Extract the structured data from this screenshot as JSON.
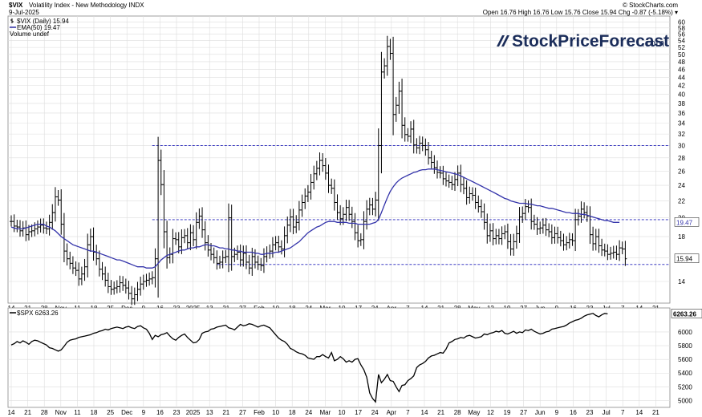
{
  "header": {
    "symbol": "$VIX",
    "description": "Volatility Index - New Methodology  INDX",
    "date": "9-Jul-2025",
    "ohlc": "Open 16.76  High 16.76  Low 15.76  Close 15.94  Chg -0.87 (-5.18%) ▾",
    "copyright": "© StockCharts.com",
    "logo_text": "StockPriceForecast",
    "logo_suffix": ".com"
  },
  "colors": {
    "price_bars": "#000000",
    "ema": "#3333aa",
    "support_lines": "#2222bb",
    "grid": "#dddddd",
    "logo": "#1b2d5a"
  },
  "chart_data": [
    {
      "type": "ohlc",
      "title": "$VIX (Daily) 15.94",
      "legend": [
        {
          "name": "$VIX (Daily) 15.94",
          "marker": "ohlc-icon"
        },
        {
          "name": "EMA(50) 19.47",
          "marker": "line"
        },
        {
          "name": "Volume undef",
          "marker": "none"
        }
      ],
      "y_scale": "log",
      "ylim": [
        12.4,
        62
      ],
      "y_ticks": [
        14,
        16,
        18,
        20,
        22,
        24,
        26,
        28,
        30,
        32,
        34,
        36,
        38,
        40,
        42,
        44,
        46,
        48,
        50,
        52,
        54,
        56,
        58,
        60
      ],
      "x_ticks": [
        "14",
        "21",
        "28",
        "Nov",
        "11",
        "18",
        "25",
        "Dec",
        "9",
        "16",
        "23",
        "2025",
        "13",
        "21",
        "27",
        "Feb",
        "10",
        "18",
        "24",
        "Mar",
        "10",
        "17",
        "24",
        "Apr",
        "7",
        "14",
        "21",
        "28",
        "May",
        "12",
        "19",
        "27",
        "Jun",
        "9",
        "16",
        "23",
        "Jul",
        "7",
        "14",
        "21"
      ],
      "last_value_badge": "15.94",
      "ema_badge": "19.47",
      "horizontal_lines": [
        {
          "value": 30.0,
          "from_index": 48
        },
        {
          "value": 19.8,
          "from_index": 48
        },
        {
          "value": 15.4,
          "from_index": 70
        }
      ],
      "series": [
        {
          "name": "$VIX",
          "type": "ohlc",
          "close": [
            19.6,
            19.1,
            19.0,
            18.6,
            18.9,
            18.2,
            18.5,
            18.6,
            18.8,
            19.0,
            19.2,
            18.9,
            18.8,
            19.5,
            20.6,
            22.5,
            22.1,
            19.3,
            16.6,
            15.9,
            15.5,
            15.1,
            14.9,
            14.2,
            14.6,
            15.2,
            17.2,
            18.0,
            16.5,
            15.9,
            15.0,
            14.6,
            14.1,
            13.6,
            13.4,
            13.5,
            13.6,
            13.9,
            13.7,
            13.5,
            13.1,
            12.7,
            13.0,
            13.4,
            13.8,
            14.0,
            14.1,
            14.2,
            14.3,
            15.9,
            27.6,
            24.1,
            18.5,
            16.0,
            16.3,
            17.8,
            17.7,
            17.0,
            17.9,
            18.1,
            17.4,
            18.4,
            17.7,
            19.5,
            20.2,
            18.7,
            17.4,
            16.7,
            16.3,
            16.0,
            15.5,
            15.6,
            16.0,
            16.1,
            20.0,
            16.1,
            16.3,
            16.5,
            15.8,
            16.4,
            15.6,
            15.1,
            16.1,
            15.6,
            15.4,
            15.3,
            16.1,
            16.4,
            16.6,
            17.2,
            17.4,
            17.0,
            16.8,
            18.1,
            19.2,
            20.1,
            19.0,
            19.5,
            20.9,
            21.8,
            22.6,
            23.1,
            24.4,
            25.6,
            26.4,
            27.6,
            26.8,
            25.7,
            24.0,
            23.6,
            21.8,
            20.6,
            19.9,
            20.4,
            21.2,
            20.4,
            19.6,
            18.4,
            17.6,
            17.7,
            19.6,
            21.0,
            21.5,
            21.0,
            22.1,
            30.0,
            45.3,
            46.9,
            52.3,
            50.3,
            35.7,
            37.6,
            40.7,
            33.6,
            31.9,
            31.6,
            32.9,
            30.1,
            29.6,
            30.4,
            30.0,
            29.3,
            28.0,
            27.3,
            26.5,
            25.8,
            25.7,
            24.9,
            24.6,
            24.4,
            24.1,
            24.8,
            25.7,
            24.1,
            23.6,
            22.4,
            22.9,
            22.7,
            21.8,
            21.3,
            20.7,
            19.5,
            18.1,
            18.6,
            17.8,
            18.1,
            17.8,
            18.3,
            18.5,
            17.5,
            16.8,
            17.5,
            18.3,
            20.1,
            20.5,
            21.3,
            21.2,
            19.6,
            19.3,
            18.8,
            18.9,
            19.2,
            18.7,
            18.5,
            17.9,
            18.3,
            17.9,
            17.6,
            17.2,
            17.4,
            17.7,
            17.6,
            19.8,
            20.2,
            21.0,
            20.6,
            20.2,
            18.2,
            17.3,
            18.0,
            17.1,
            16.7,
            16.6,
            16.3,
            16.4,
            16.5,
            16.3,
            16.9,
            16.8,
            15.9
          ]
        },
        {
          "name": "EMA(50) 19.47",
          "type": "line",
          "values": [
            19.0,
            18.9,
            18.8,
            18.8,
            18.8,
            18.9,
            19.0,
            19.1,
            19.2,
            19.3,
            19.3,
            19.3,
            19.1,
            19.0,
            18.8,
            18.6,
            18.3,
            18.0,
            17.8,
            17.6,
            17.4,
            17.2,
            17.1,
            17.0,
            16.9,
            16.8,
            16.7,
            16.6,
            16.6,
            16.5,
            16.4,
            16.3,
            16.2,
            16.1,
            16.0,
            15.9,
            15.8,
            15.8,
            15.7,
            15.6,
            15.5,
            15.4,
            15.3,
            15.2,
            15.2,
            15.2,
            15.1,
            15.1,
            15.1,
            15.2,
            15.5,
            15.8,
            16.0,
            16.2,
            16.3,
            16.4,
            16.5,
            16.6,
            16.7,
            16.7,
            16.8,
            16.9,
            16.9,
            17.0,
            17.0,
            17.1,
            17.2,
            17.2,
            17.1,
            17.1,
            17.0,
            16.9,
            16.9,
            16.8,
            16.8,
            16.7,
            16.7,
            16.6,
            16.6,
            16.5,
            16.5,
            16.5,
            16.5,
            16.4,
            16.4,
            16.3,
            16.3,
            16.4,
            16.4,
            16.4,
            16.5,
            16.5,
            16.6,
            16.7,
            16.8,
            16.9,
            17.1,
            17.3,
            17.5,
            17.8,
            18.1,
            18.4,
            18.6,
            18.8,
            19.0,
            19.1,
            19.3,
            19.5,
            19.6,
            19.6,
            19.6,
            19.5,
            19.5,
            19.5,
            19.5,
            19.4,
            19.4,
            19.4,
            19.3,
            19.3,
            19.3,
            19.3,
            19.3,
            19.4,
            19.5,
            19.8,
            20.6,
            21.5,
            22.4,
            23.2,
            23.8,
            24.3,
            24.7,
            25.0,
            25.2,
            25.4,
            25.6,
            25.8,
            25.9,
            26.1,
            26.2,
            26.2,
            26.3,
            26.3,
            26.3,
            26.2,
            26.1,
            26.0,
            25.9,
            25.8,
            25.7,
            25.6,
            25.5,
            25.3,
            25.1,
            24.9,
            24.7,
            24.5,
            24.3,
            24.1,
            23.9,
            23.7,
            23.5,
            23.3,
            23.1,
            22.9,
            22.7,
            22.5,
            22.3,
            22.2,
            22.0,
            21.9,
            21.8,
            21.7,
            21.7,
            21.7,
            21.6,
            21.6,
            21.5,
            21.4,
            21.4,
            21.3,
            21.2,
            21.1,
            21.1,
            21.0,
            20.9,
            20.8,
            20.7,
            20.6,
            20.6,
            20.5,
            20.5,
            20.5,
            20.4,
            20.4,
            20.3,
            20.2,
            20.1,
            20.0,
            19.9,
            19.8,
            19.7,
            19.7,
            19.6,
            19.5,
            19.5,
            19.5
          ]
        }
      ]
    },
    {
      "type": "line",
      "title": "$SPX 6263.26",
      "legend": [
        {
          "name": "$SPX 6263.26",
          "marker": "line"
        }
      ],
      "ylim": [
        4900,
        6350
      ],
      "y_ticks": [
        5000,
        5200,
        5400,
        5600,
        5800,
        6000
      ],
      "last_value_badge": "6263.26",
      "x_ticks": [
        "14",
        "21",
        "28",
        "Nov",
        "11",
        "18",
        "25",
        "Dec",
        "9",
        "16",
        "23",
        "2025",
        "13",
        "21",
        "27",
        "Feb",
        "10",
        "18",
        "24",
        "Mar",
        "10",
        "17",
        "24",
        "Apr",
        "7",
        "14",
        "21",
        "28",
        "May",
        "12",
        "19",
        "27",
        "Jun",
        "9",
        "16",
        "23",
        "Jul",
        "7",
        "14",
        "21"
      ],
      "series": [
        {
          "name": "$SPX",
          "values": [
            5810,
            5830,
            5860,
            5840,
            5870,
            5850,
            5820,
            5860,
            5880,
            5870,
            5850,
            5830,
            5810,
            5770,
            5760,
            5740,
            5720,
            5740,
            5790,
            5850,
            5880,
            5890,
            5900,
            5920,
            5930,
            5940,
            5950,
            5960,
            5980,
            5990,
            6010,
            6020,
            6040,
            6030,
            6050,
            6060,
            6070,
            6060,
            6050,
            6070,
            6080,
            6060,
            6050,
            6080,
            6090,
            6060,
            6040,
            5980,
            5890,
            5950,
            5930,
            5960,
            5970,
            5990,
            5940,
            5900,
            5880,
            5920,
            5950,
            5970,
            5920,
            5880,
            5840,
            5850,
            5890,
            5980,
            6000,
            6010,
            6040,
            6050,
            6070,
            6080,
            6090,
            6100,
            6060,
            6050,
            6030,
            6070,
            6110,
            6090,
            6100,
            6120,
            6110,
            6090,
            6070,
            6090,
            6100,
            6080,
            6060,
            6010,
            5960,
            5910,
            5880,
            5860,
            5820,
            5760,
            5740,
            5710,
            5690,
            5680,
            5660,
            5620,
            5610,
            5600,
            5640,
            5640,
            5670,
            5640,
            5620,
            5700,
            5580,
            5600,
            5640,
            5610,
            5560,
            5580,
            5560,
            5600,
            5610,
            5520,
            5450,
            5340,
            5110,
            5030,
            4980,
            5380,
            5260,
            5310,
            5380,
            5290,
            5280,
            5200,
            5130,
            5220,
            5230,
            5290,
            5320,
            5360,
            5480,
            5520,
            5540,
            5570,
            5620,
            5650,
            5660,
            5680,
            5700,
            5690,
            5750,
            5840,
            5860,
            5890,
            5900,
            5920,
            5910,
            5940,
            5950,
            5930,
            5910,
            5920,
            5930,
            5970,
            5960,
            5980,
            5990,
            6010,
            6000,
            6020,
            5980,
            5970,
            5990,
            6010,
            5980,
            6000,
            5990,
            6030,
            6020,
            6040,
            6010,
            5990,
            5970,
            5980,
            6000,
            6010,
            6040,
            6050,
            6060,
            6070,
            6080,
            6100,
            6130,
            6150,
            6170,
            6180,
            6200,
            6230,
            6250,
            6260,
            6270,
            6240,
            6220,
            6250,
            6270,
            6263.26
          ]
        }
      ]
    }
  ]
}
